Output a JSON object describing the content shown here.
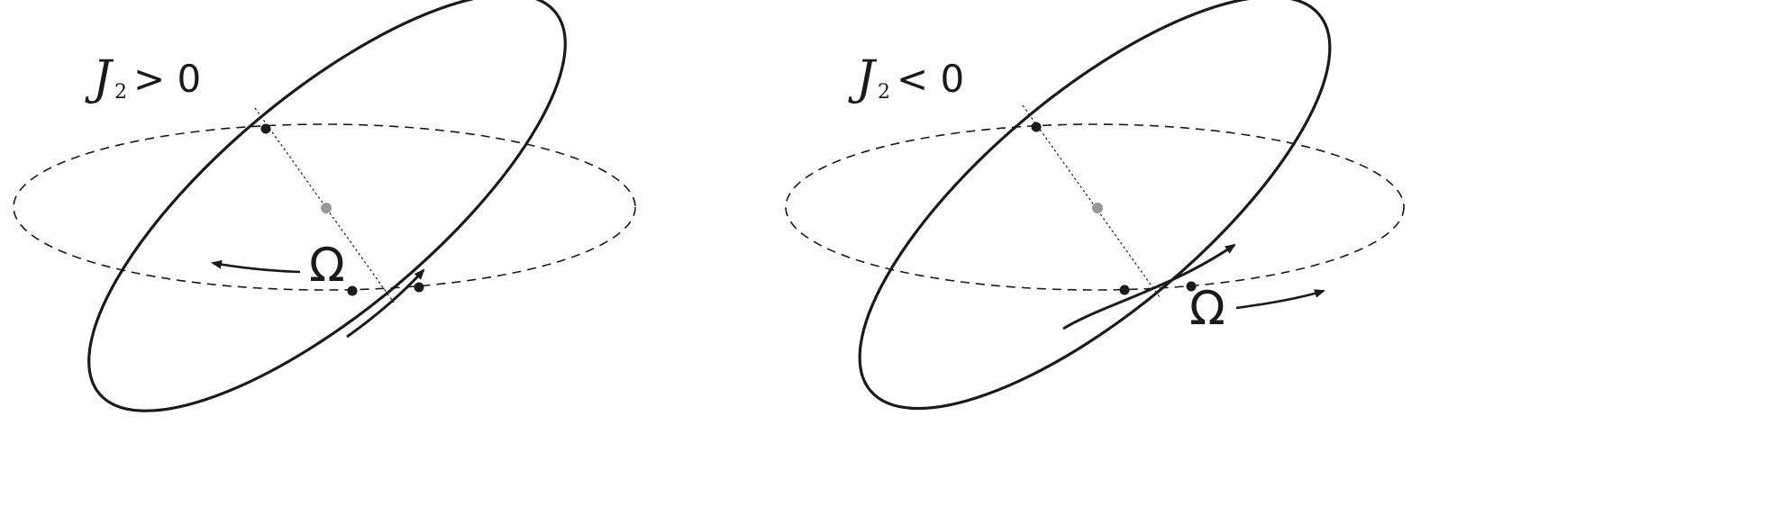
{
  "panels": [
    {
      "symbol": "J",
      "subscript": "2",
      "relation": "> 0",
      "node_precession_symbol": "Ω"
    },
    {
      "symbol": "J",
      "subscript": "2",
      "relation": "< 0",
      "node_precession_symbol": "Ω"
    }
  ]
}
